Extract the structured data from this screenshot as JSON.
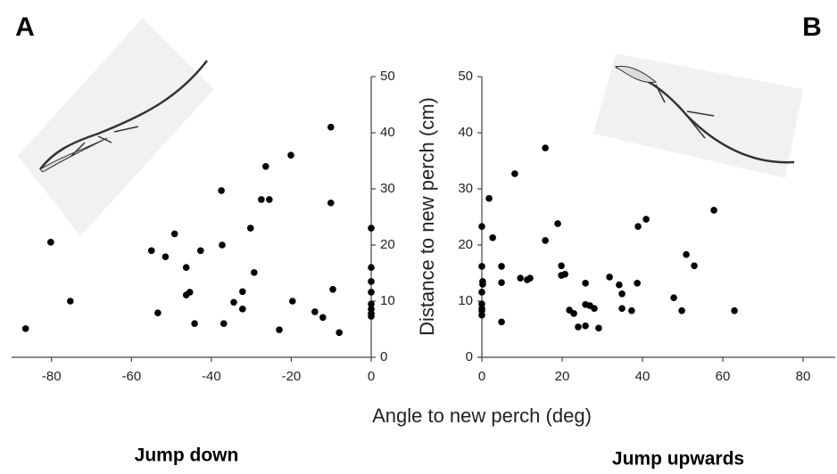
{
  "xlabel": "Angle to new perch (deg)",
  "ylabel": "Distance to new perch (cm)",
  "chart_data": [
    {
      "type": "scatter",
      "panel_label": "A",
      "title": "Jump down",
      "color": "#000000",
      "xlim": [
        -90,
        0
      ],
      "xticks": [
        -80,
        -60,
        -40,
        -20,
        0
      ],
      "ylim": [
        0,
        50
      ],
      "yticks": [
        0,
        10,
        20,
        30,
        40,
        50
      ],
      "y_axis_side": "right",
      "x": [
        -86.5,
        -80.2,
        -75.3,
        -55,
        -51.5,
        -49.2,
        -53.4,
        -46.3,
        -46.3,
        -45.4,
        -44.2,
        -42.7,
        -37.5,
        -37.3,
        -36.9,
        -34.4,
        -32.2,
        -32.2,
        -30.2,
        -29.3,
        -27.5,
        -26.4,
        -25.5,
        -23,
        -20.1,
        -19.7,
        -14.1,
        -12.1,
        -10.1,
        -10.1,
        -9.6,
        -8,
        0,
        0,
        0,
        0,
        0,
        0,
        0,
        0
      ],
      "y": [
        5.1,
        20.5,
        10,
        19,
        17.9,
        22,
        7.9,
        16,
        11.1,
        11.6,
        6,
        19,
        29.7,
        20,
        6,
        9.8,
        11.7,
        8.6,
        23,
        15.1,
        28.1,
        34,
        28.1,
        4.9,
        36,
        10,
        8.1,
        7.1,
        41,
        27.5,
        12.1,
        4.4,
        23,
        16,
        13.5,
        11.6,
        9.5,
        8.6,
        7.8,
        7.3
      ]
    },
    {
      "type": "scatter",
      "panel_label": "B",
      "title": "Jump upwards",
      "color": "#000000",
      "xlim": [
        0,
        88
      ],
      "xticks": [
        0,
        20,
        40,
        60,
        80
      ],
      "ylim": [
        0,
        50
      ],
      "yticks": [
        0,
        10,
        20,
        30,
        40,
        50
      ],
      "y_axis_side": "left",
      "x": [
        0,
        0,
        0.2,
        0.2,
        0,
        0,
        0,
        0,
        0,
        1.8,
        2.7,
        4.9,
        4.9,
        4.9,
        8.2,
        9.6,
        11.3,
        12,
        15.8,
        15.8,
        18.9,
        19.8,
        19.8,
        20.7,
        21.8,
        22.9,
        24,
        25.8,
        25.8,
        25.8,
        26.9,
        28,
        29.1,
        31.8,
        34.2,
        34.9,
        34.9,
        37.3,
        38.7,
        38.9,
        40.9,
        47.8,
        49.8,
        50.9,
        52.9,
        57.8,
        62.9
      ],
      "y": [
        23.3,
        16.2,
        13.5,
        13,
        9.5,
        8.7,
        8.3,
        7.5,
        11.6,
        28.3,
        21.3,
        16.2,
        13.3,
        6.3,
        32.7,
        14.1,
        13.8,
        14.1,
        37.3,
        20.8,
        23.8,
        16.3,
        14.6,
        14.8,
        8.4,
        7.8,
        5.4,
        13.2,
        9.4,
        5.6,
        9.2,
        8.7,
        5.2,
        14.3,
        12.9,
        11.3,
        8.7,
        8.3,
        13.2,
        23.3,
        24.6,
        10.6,
        8.3,
        18.3,
        16.3,
        26.2,
        8.3
      ]
    }
  ]
}
